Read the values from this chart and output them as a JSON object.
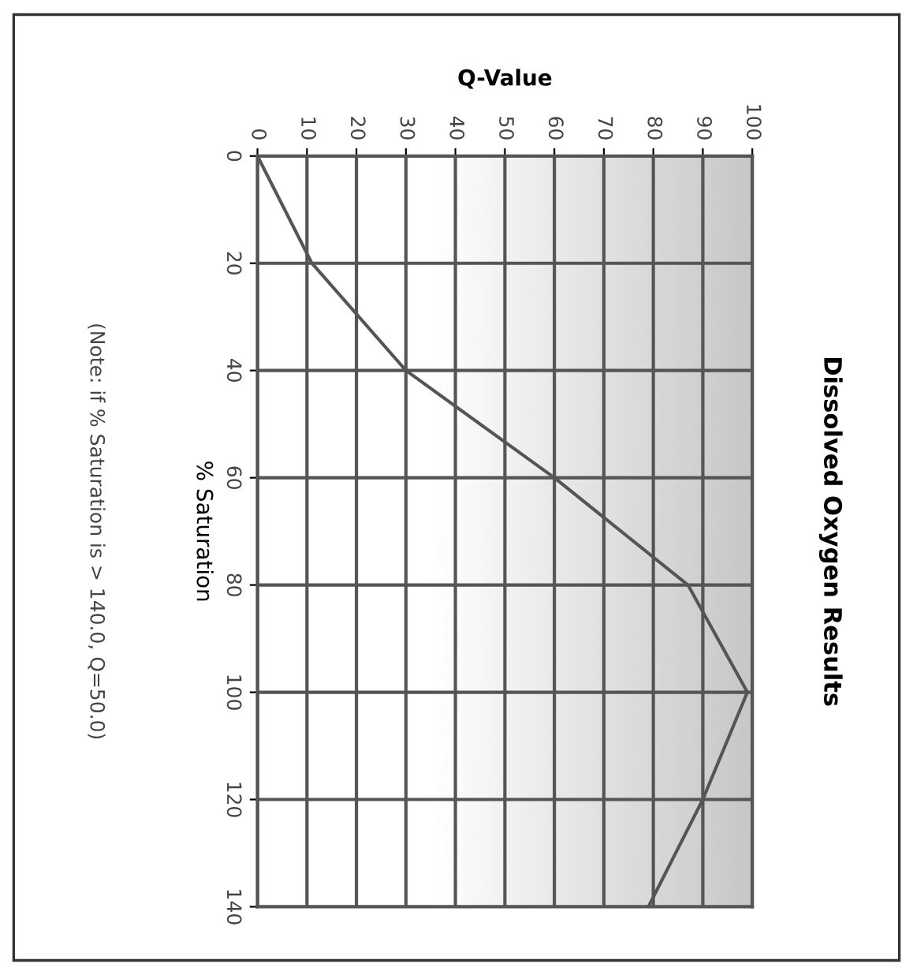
{
  "chart_data": {
    "type": "line",
    "title": "Dissolved Oxygen Results",
    "xlabel": "Q-Value",
    "ylabel": "% Saturation",
    "annotations": [
      "(Note: if % Saturation is > 140.0, Q=50.0)"
    ],
    "x": [
      0,
      11,
      30,
      60,
      87,
      99,
      90,
      79
    ],
    "series": [
      {
        "color": "#555555",
        "values": [
          0,
          20,
          40,
          60,
          80,
          100,
          120,
          140
        ]
      }
    ],
    "xlim": [
      0,
      100
    ],
    "xticks": [
      0,
      10,
      20,
      30,
      40,
      50,
      60,
      70,
      80,
      90,
      100
    ],
    "ylim": [
      140,
      0
    ],
    "yticks": [
      0,
      20,
      40,
      60,
      80,
      100,
      120,
      140
    ],
    "grid": true,
    "marker": "none",
    "line_style": "solid",
    "legend": false
  }
}
